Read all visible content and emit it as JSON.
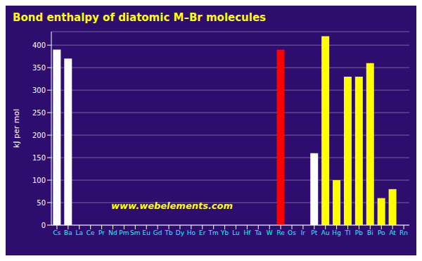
{
  "chart_data": {
    "type": "bar",
    "title": "Bond enthalpy of diatomic M–Br molecules",
    "ylabel": "kJ per mol",
    "annotation": "www.webelements.com",
    "categories": [
      "Cs",
      "Ba",
      "La",
      "Ce",
      "Pr",
      "Nd",
      "Pm",
      "Sm",
      "Eu",
      "Gd",
      "Tb",
      "Dy",
      "Ho",
      "Er",
      "Tm",
      "Yb",
      "Lu",
      "Hf",
      "Ta",
      "W",
      "Re",
      "Os",
      "Ir",
      "Pt",
      "Au",
      "Hg",
      "Tl",
      "Pb",
      "Bi",
      "Po",
      "At",
      "Rn"
    ],
    "values": [
      390,
      370,
      0,
      0,
      0,
      0,
      0,
      0,
      0,
      0,
      0,
      0,
      0,
      0,
      0,
      0,
      0,
      0,
      0,
      0,
      390,
      0,
      0,
      160,
      420,
      100,
      330,
      330,
      360,
      60,
      80,
      0
    ],
    "colors": [
      "white",
      "white",
      "green",
      "green",
      "green",
      "green",
      "green",
      "green",
      "green",
      "green",
      "green",
      "green",
      "green",
      "green",
      "green",
      "green",
      "green",
      "cyan",
      "cyan",
      "cyan",
      "red",
      "cyan",
      "cyan",
      "white",
      "yellow",
      "yellow",
      "yellow",
      "yellow",
      "yellow",
      "yellow",
      "yellow",
      "yellow"
    ],
    "ylim": [
      0,
      430
    ],
    "yticks": [
      0,
      50,
      100,
      150,
      200,
      250,
      300,
      350,
      400
    ],
    "grid": true
  }
}
